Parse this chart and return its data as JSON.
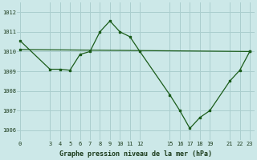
{
  "xlabel": "Graphe pression niveau de la mer (hPa)",
  "bg_color": "#cce8e8",
  "grid_color": "#aacece",
  "line_color": "#1a5c1a",
  "line1_x": [
    0,
    3,
    4,
    5,
    6,
    7,
    8,
    9,
    10,
    11,
    12,
    15,
    16,
    17,
    18,
    19,
    21,
    22,
    23
  ],
  "line1_y": [
    1010.55,
    1009.1,
    1009.1,
    1009.05,
    1009.85,
    1010.0,
    1011.0,
    1011.55,
    1011.0,
    1010.75,
    1010.0,
    1007.8,
    1007.0,
    1006.1,
    1006.65,
    1007.0,
    1008.5,
    1009.05,
    1010.0
  ],
  "line2_x": [
    0,
    23
  ],
  "line2_y": [
    1010.1,
    1010.0
  ],
  "xticks": [
    0,
    3,
    4,
    5,
    6,
    7,
    8,
    9,
    10,
    11,
    12,
    15,
    16,
    17,
    18,
    19,
    21,
    22,
    23
  ],
  "yticks": [
    1006,
    1007,
    1008,
    1009,
    1010,
    1011,
    1012
  ],
  "ylim": [
    1005.5,
    1012.5
  ],
  "xlim": [
    -0.3,
    23.5
  ]
}
